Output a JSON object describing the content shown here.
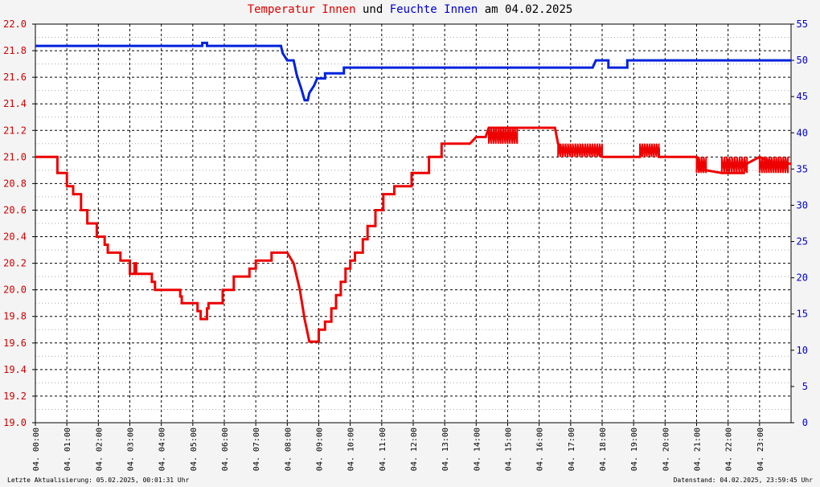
{
  "title": {
    "series1": "Temperatur Innen",
    "joiner": "und",
    "series2": "Feuchte Innen",
    "date_text": "am 04.02.2025"
  },
  "footer": {
    "left": "Letzte Aktualisierung: 05.02.2025, 00:01:31 Uhr",
    "right": "Datenstand: 04.02.2025, 23:59:45 Uhr"
  },
  "colors": {
    "temperature": "#ee0000",
    "humidity": "#0022dd",
    "grid": "#000000",
    "left_axis": "#cc0000",
    "right_axis": "#0000cc"
  },
  "chart_data": {
    "type": "line",
    "x_unit": "hours",
    "xlim": [
      0,
      24
    ],
    "x_tick_labels": [
      "04. 00:00",
      "04. 01:00",
      "04. 02:00",
      "04. 03:00",
      "04. 04:00",
      "04. 05:00",
      "04. 06:00",
      "04. 07:00",
      "04. 08:00",
      "04. 09:00",
      "04. 10:00",
      "04. 11:00",
      "04. 12:00",
      "04. 13:00",
      "04. 14:00",
      "04. 15:00",
      "04. 16:00",
      "04. 17:00",
      "04. 18:00",
      "04. 19:00",
      "04. 20:00",
      "04. 21:00",
      "04. 22:00",
      "04. 23:00"
    ],
    "y_left": {
      "lim": [
        19.0,
        22.0
      ],
      "ticks": [
        "19.0",
        "19.2",
        "19.4",
        "19.6",
        "19.8",
        "20.0",
        "20.2",
        "20.4",
        "20.6",
        "20.8",
        "21.0",
        "21.2",
        "21.4",
        "21.6",
        "21.8",
        "22.0"
      ]
    },
    "y_right": {
      "lim": [
        0,
        55
      ],
      "ticks": [
        "0",
        "5",
        "10",
        "15",
        "20",
        "25",
        "30",
        "35",
        "40",
        "45",
        "50",
        "55"
      ]
    },
    "grid": true,
    "series": [
      {
        "name": "Temperatur Innen",
        "axis": "left",
        "points": [
          [
            0,
            21.0
          ],
          [
            0.7,
            21.0
          ],
          [
            0.7,
            20.88
          ],
          [
            1.0,
            20.88
          ],
          [
            1.0,
            20.78
          ],
          [
            1.2,
            20.78
          ],
          [
            1.2,
            20.72
          ],
          [
            1.45,
            20.72
          ],
          [
            1.45,
            20.6
          ],
          [
            1.65,
            20.6
          ],
          [
            1.65,
            20.5
          ],
          [
            1.95,
            20.5
          ],
          [
            1.95,
            20.4
          ],
          [
            2.2,
            20.4
          ],
          [
            2.2,
            20.34
          ],
          [
            2.3,
            20.34
          ],
          [
            2.3,
            20.28
          ],
          [
            2.7,
            20.28
          ],
          [
            2.7,
            20.22
          ],
          [
            3.0,
            20.22
          ],
          [
            3.0,
            20.12
          ],
          [
            3.15,
            20.12
          ],
          [
            3.15,
            20.2
          ],
          [
            3.2,
            20.2
          ],
          [
            3.2,
            20.12
          ],
          [
            3.7,
            20.12
          ],
          [
            3.7,
            20.06
          ],
          [
            3.8,
            20.06
          ],
          [
            3.8,
            20.0
          ],
          [
            4.6,
            20.0
          ],
          [
            4.6,
            19.95
          ],
          [
            4.65,
            19.95
          ],
          [
            4.65,
            19.9
          ],
          [
            5.15,
            19.9
          ],
          [
            5.15,
            19.84
          ],
          [
            5.25,
            19.84
          ],
          [
            5.25,
            19.78
          ],
          [
            5.45,
            19.78
          ],
          [
            5.45,
            19.86
          ],
          [
            5.5,
            19.86
          ],
          [
            5.5,
            19.9
          ],
          [
            5.95,
            19.9
          ],
          [
            5.95,
            20.0
          ],
          [
            6.3,
            20.0
          ],
          [
            6.3,
            20.1
          ],
          [
            6.8,
            20.1
          ],
          [
            6.8,
            20.16
          ],
          [
            7.0,
            20.16
          ],
          [
            7.0,
            20.22
          ],
          [
            7.5,
            20.22
          ],
          [
            7.5,
            20.28
          ],
          [
            8.0,
            20.28
          ],
          [
            8.2,
            20.2
          ],
          [
            8.4,
            20.0
          ],
          [
            8.55,
            19.78
          ],
          [
            8.7,
            19.61
          ],
          [
            9.0,
            19.61
          ],
          [
            9.0,
            19.7
          ],
          [
            9.2,
            19.7
          ],
          [
            9.2,
            19.76
          ],
          [
            9.4,
            19.76
          ],
          [
            9.4,
            19.86
          ],
          [
            9.55,
            19.86
          ],
          [
            9.55,
            19.96
          ],
          [
            9.7,
            19.96
          ],
          [
            9.7,
            20.06
          ],
          [
            9.85,
            20.06
          ],
          [
            9.85,
            20.16
          ],
          [
            10.0,
            20.16
          ],
          [
            10.0,
            20.22
          ],
          [
            10.15,
            20.22
          ],
          [
            10.15,
            20.28
          ],
          [
            10.4,
            20.28
          ],
          [
            10.4,
            20.38
          ],
          [
            10.55,
            20.38
          ],
          [
            10.55,
            20.48
          ],
          [
            10.8,
            20.48
          ],
          [
            10.8,
            20.6
          ],
          [
            11.05,
            20.6
          ],
          [
            11.05,
            20.72
          ],
          [
            11.4,
            20.72
          ],
          [
            11.4,
            20.78
          ],
          [
            11.95,
            20.78
          ],
          [
            11.95,
            20.88
          ],
          [
            12.5,
            20.88
          ],
          [
            12.5,
            21.0
          ],
          [
            12.9,
            21.0
          ],
          [
            12.9,
            21.1
          ],
          [
            13.7,
            21.1
          ],
          [
            13.8,
            21.1
          ],
          [
            14.0,
            21.15
          ],
          [
            14.3,
            21.15
          ],
          [
            14.4,
            21.22
          ],
          [
            16.0,
            21.22
          ],
          [
            16.5,
            21.22
          ],
          [
            16.6,
            21.1
          ],
          [
            16.8,
            21.04
          ],
          [
            17.2,
            21.04
          ],
          [
            17.5,
            21.04
          ],
          [
            17.8,
            21.04
          ],
          [
            18.0,
            21.0
          ],
          [
            18.9,
            21.0
          ],
          [
            19.2,
            21.0
          ],
          [
            19.25,
            21.06
          ],
          [
            19.8,
            21.06
          ],
          [
            19.8,
            21.0
          ],
          [
            21.0,
            21.0
          ],
          [
            21.1,
            20.9
          ],
          [
            21.3,
            20.9
          ],
          [
            21.8,
            20.88
          ],
          [
            22.5,
            20.88
          ],
          [
            22.6,
            20.95
          ],
          [
            23.0,
            21.0
          ],
          [
            23.5,
            20.95
          ],
          [
            24.0,
            20.95
          ]
        ]
      },
      {
        "name": "Feuchte Innen",
        "axis": "right",
        "points": [
          [
            0,
            52
          ],
          [
            5.3,
            52
          ],
          [
            5.3,
            52.4
          ],
          [
            5.45,
            52.4
          ],
          [
            5.45,
            52
          ],
          [
            7.8,
            52
          ],
          [
            7.85,
            51
          ],
          [
            8.0,
            50
          ],
          [
            8.2,
            50
          ],
          [
            8.3,
            48
          ],
          [
            8.45,
            46
          ],
          [
            8.55,
            44.5
          ],
          [
            8.65,
            44.5
          ],
          [
            8.7,
            45.5
          ],
          [
            8.85,
            46.5
          ],
          [
            8.95,
            47.5
          ],
          [
            9.2,
            47.5
          ],
          [
            9.2,
            48.2
          ],
          [
            9.8,
            48.2
          ],
          [
            9.8,
            49
          ],
          [
            14.1,
            49
          ],
          [
            15.8,
            49
          ],
          [
            16.3,
            49
          ],
          [
            16.35,
            49
          ],
          [
            16.5,
            49
          ],
          [
            17.7,
            49
          ],
          [
            17.8,
            50
          ],
          [
            18.2,
            50
          ],
          [
            18.2,
            49
          ],
          [
            18.8,
            49
          ],
          [
            18.8,
            50
          ],
          [
            24,
            50
          ]
        ]
      }
    ],
    "noise_bands": [
      {
        "series": "Temperatur Innen",
        "x": [
          14.4,
          15.3
        ],
        "values": [
          21.1,
          21.22
        ]
      },
      {
        "series": "Temperatur Innen",
        "x": [
          16.6,
          18.0
        ],
        "values": [
          21.0,
          21.1
        ]
      },
      {
        "series": "Temperatur Innen",
        "x": [
          19.2,
          19.8
        ],
        "values": [
          21.0,
          21.1
        ]
      },
      {
        "series": "Temperatur Innen",
        "x": [
          21.0,
          21.3
        ],
        "values": [
          20.88,
          21.0
        ]
      },
      {
        "series": "Temperatur Innen",
        "x": [
          21.8,
          22.6
        ],
        "values": [
          20.88,
          21.0
        ]
      },
      {
        "series": "Temperatur Innen",
        "x": [
          23.0,
          23.9
        ],
        "values": [
          20.88,
          21.0
        ]
      }
    ]
  }
}
